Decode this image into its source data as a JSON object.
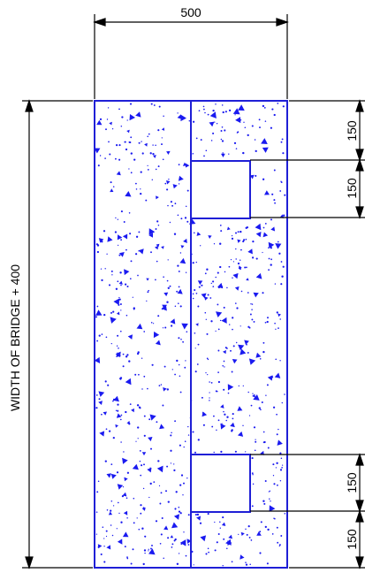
{
  "drawing": {
    "top_width_label": "500",
    "height_label": "WIDTH OF BRIDGE + 400",
    "right_dims_top": [
      "150",
      "150"
    ],
    "right_dims_bottom": [
      "150",
      "150"
    ],
    "colors": {
      "concrete_outline": "#1f1fd6",
      "speckle": "#1a1af0",
      "dimension": "#000000",
      "background": "#ffffff"
    }
  }
}
